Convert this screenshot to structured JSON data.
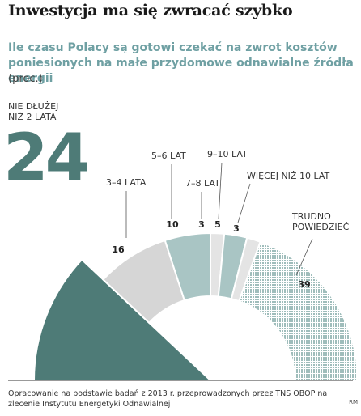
{
  "header": {
    "title": "Inwestycja ma się zwracać szybko",
    "subtitle": "Ile czasu Polacy są gotowi czekać na zwrot kosztów poniesionych na małe przydomowe odnawialne źródła energii",
    "unit": "(proc.)"
  },
  "footer": {
    "source": "Opracowanie na podstawie badań z 2013 r. przeprowadzonych przez TNS OBOP na zlecenie Instytutu Energetyki Odnawialnej",
    "credit": "RM"
  },
  "colors": {
    "dark_teal": "#4e7b77",
    "light_gray": "#d6d6d6",
    "light_teal": "#a9c5c4",
    "pale_gray": "#e4e4e4",
    "dotted": "#9fbdbb",
    "subtitle": "#6fa0a3"
  },
  "chart_data": {
    "type": "pie",
    "layout": "half-donut",
    "title": "Inwestycja ma się zwracać szybko",
    "unit": "(proc.)",
    "categories": [
      "NIE DŁUŻEJ NIŻ 2 LATA",
      "3–4 LATA",
      "5–6 LAT",
      "7–8 LAT",
      "9–10 LAT",
      "WIĘCEJ NIŻ 10 LAT",
      "TRUDNO POWIEDZIEĆ"
    ],
    "values": [
      24,
      16,
      10,
      3,
      5,
      3,
      39
    ],
    "value_labels": [
      "24",
      "16",
      "10",
      "3",
      "5",
      "3",
      "39"
    ],
    "label_lines": [
      [
        "NIE DŁUŻEJ",
        "NIŻ 2 LATA"
      ],
      [
        "3–4 LATA"
      ],
      [
        "5–6 LAT"
      ],
      [
        "7–8 LAT"
      ],
      [
        "9–10 LAT"
      ],
      [
        "WIĘCEJ NIŻ 10 LAT"
      ],
      [
        "TRUDNO",
        "POWIEDZIEĆ"
      ]
    ],
    "colors": [
      "#4e7b77",
      "#d6d6d6",
      "#a9c5c4",
      "#e4e4e4",
      "#a9c5c4",
      "#e4e4e4",
      "dotted"
    ]
  }
}
